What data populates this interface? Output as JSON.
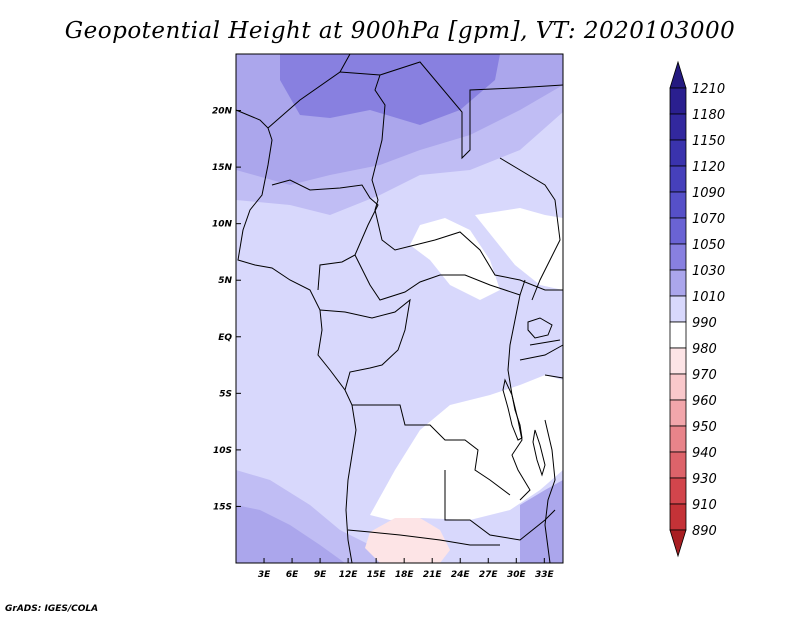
{
  "title": "Geopotential Height at 900hPa [gpm], VT: 2020103000",
  "footer": "GrADS: IGES/COLA",
  "map": {
    "lon_range": [
      0,
      35
    ],
    "lat_range": [
      -20,
      25
    ],
    "lon_ticks": [
      {
        "value": 3,
        "label": "3E"
      },
      {
        "value": 6,
        "label": "6E"
      },
      {
        "value": 9,
        "label": "9E"
      },
      {
        "value": 12,
        "label": "12E"
      },
      {
        "value": 15,
        "label": "15E"
      },
      {
        "value": 18,
        "label": "18E"
      },
      {
        "value": 21,
        "label": "21E"
      },
      {
        "value": 24,
        "label": "24E"
      },
      {
        "value": 27,
        "label": "27E"
      },
      {
        "value": 30,
        "label": "30E"
      },
      {
        "value": 33,
        "label": "33E"
      }
    ],
    "lat_ticks": [
      {
        "value": 20,
        "label": "20N"
      },
      {
        "value": 15,
        "label": "15N"
      },
      {
        "value": 10,
        "label": "10N"
      },
      {
        "value": 5,
        "label": "5N"
      },
      {
        "value": 0,
        "label": "EQ"
      },
      {
        "value": -5,
        "label": "5S"
      },
      {
        "value": -10,
        "label": "10S"
      },
      {
        "value": -15,
        "label": "15S"
      }
    ]
  },
  "colorbar": {
    "levels": [
      {
        "label": "1210",
        "color": "#2a1f8f"
      },
      {
        "label": "1180",
        "color": "#32289e"
      },
      {
        "label": "1150",
        "color": "#3a33ad"
      },
      {
        "label": "1120",
        "color": "#4640bb"
      },
      {
        "label": "1090",
        "color": "#5650c8"
      },
      {
        "label": "1070",
        "color": "#6a63d4"
      },
      {
        "label": "1050",
        "color": "#8880e0"
      },
      {
        "label": "1030",
        "color": "#aba6ec"
      },
      {
        "label": "1010",
        "color": "#d8d8fc"
      },
      {
        "label": "990",
        "color": "#ffffff"
      },
      {
        "label": "980",
        "color": "#fde4e6"
      },
      {
        "label": "970",
        "color": "#f9c8cb"
      },
      {
        "label": "960",
        "color": "#f2a6ab"
      },
      {
        "label": "950",
        "color": "#e8848a"
      },
      {
        "label": "940",
        "color": "#dd636a"
      },
      {
        "label": "930",
        "color": "#d2454c"
      },
      {
        "label": "910",
        "color": "#c43237"
      },
      {
        "label": "890",
        "color": "#b52428"
      }
    ],
    "top_color": "#241a80",
    "bottom_color": "#a81e22"
  },
  "fields": {
    "background": "#d8d8fc",
    "mid": "#c0bdf4",
    "high": "#aba6ec",
    "higher": "#8880e0",
    "low": "#ffffff",
    "lower": "#fde4e6"
  }
}
